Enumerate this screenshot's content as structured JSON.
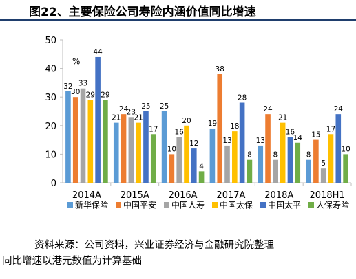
{
  "title": "图22、主要保险公司寿险内涵价值同比增速",
  "source_note": "资料来源：公司资料，兴业证券经济与金融研究院整理",
  "basis_note": "同比增速以港元数值为计算基础",
  "colors": {
    "新华保险": "#5b9bd5",
    "中国平安": "#ed7d31",
    "中国人寿": "#a5a5a5",
    "中国太保": "#ffc000",
    "中国太平": "#4472c4",
    "人保寿险": "#70ad47",
    "axis": "#bfbfbf",
    "title_rule": "#1f3e6d"
  },
  "chart_data": {
    "type": "bar",
    "title": "",
    "xlabel": "",
    "ylabel": "",
    "unit_label": "%",
    "ylim": [
      0,
      50
    ],
    "yticks": [
      0,
      10,
      20,
      30,
      40,
      50
    ],
    "grid": false,
    "legend_position": "bottom",
    "categories": [
      "2014A",
      "2015A",
      "2016A",
      "2017A",
      "2018A",
      "2018H1"
    ],
    "series": [
      {
        "name": "新华保险",
        "values": [
          32,
          21,
          25,
          19,
          13,
          8
        ]
      },
      {
        "name": "中国平安",
        "values": [
          30,
          24,
          10,
          38,
          24,
          15
        ]
      },
      {
        "name": "中国人寿",
        "values": [
          33,
          23,
          16,
          13,
          8,
          5
        ]
      },
      {
        "name": "中国太保",
        "values": [
          29,
          21,
          20,
          18,
          21,
          17
        ]
      },
      {
        "name": "中国太平",
        "values": [
          44,
          25,
          12,
          28,
          16,
          24
        ]
      },
      {
        "name": "人保寿险",
        "values": [
          29,
          17,
          4,
          8,
          14,
          10
        ]
      }
    ]
  }
}
